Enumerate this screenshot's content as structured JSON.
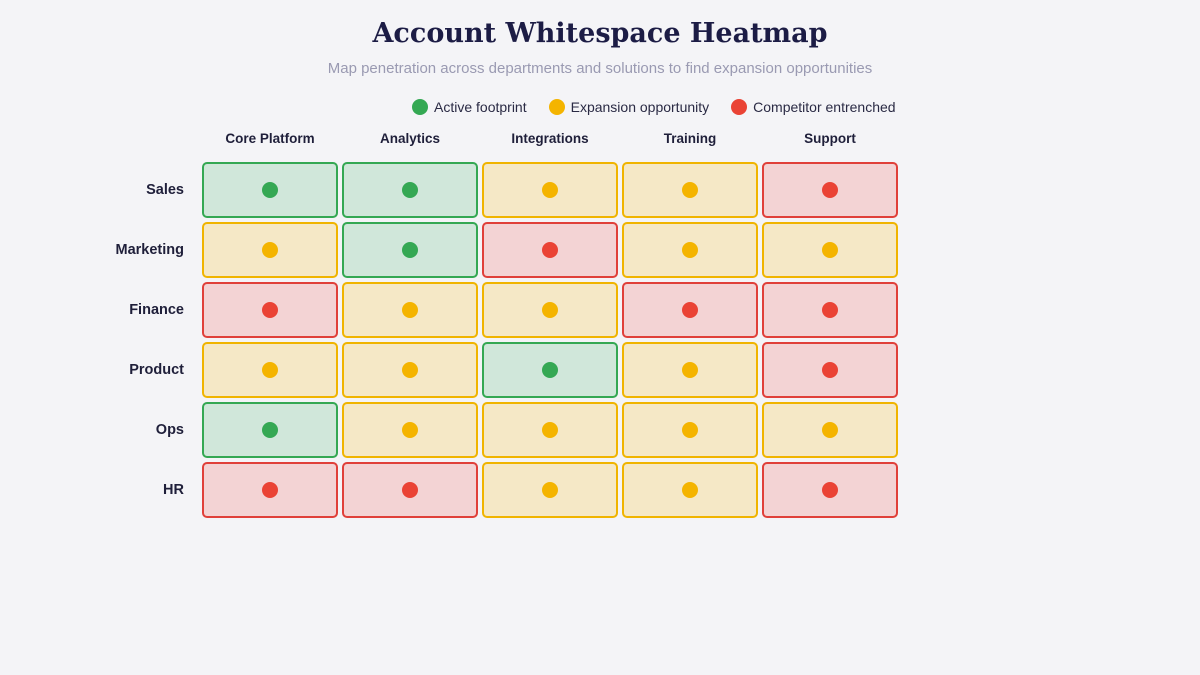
{
  "title": "Account Whitespace Heatmap",
  "subtitle": "Map penetration across departments and solutions to find expansion opportunities",
  "legend": [
    {
      "key": "active",
      "label": "Active footprint",
      "color": "#34a853"
    },
    {
      "key": "expansion",
      "label": "Expansion opportunity",
      "color": "#f4b400"
    },
    {
      "key": "competitor",
      "label": "Competitor entrenched",
      "color": "#ea4335"
    }
  ],
  "chart_data": {
    "type": "heatmap",
    "columns": [
      "Core Platform",
      "Analytics",
      "Integrations",
      "Training",
      "Support"
    ],
    "rows": [
      "Sales",
      "Marketing",
      "Finance",
      "Product",
      "Ops",
      "HR"
    ],
    "values": [
      [
        "active",
        "active",
        "expansion",
        "expansion",
        "competitor"
      ],
      [
        "expansion",
        "active",
        "competitor",
        "expansion",
        "expansion"
      ],
      [
        "competitor",
        "expansion",
        "expansion",
        "competitor",
        "competitor"
      ],
      [
        "expansion",
        "expansion",
        "active",
        "expansion",
        "competitor"
      ],
      [
        "active",
        "expansion",
        "expansion",
        "expansion",
        "expansion"
      ],
      [
        "competitor",
        "competitor",
        "expansion",
        "expansion",
        "competitor"
      ]
    ]
  }
}
